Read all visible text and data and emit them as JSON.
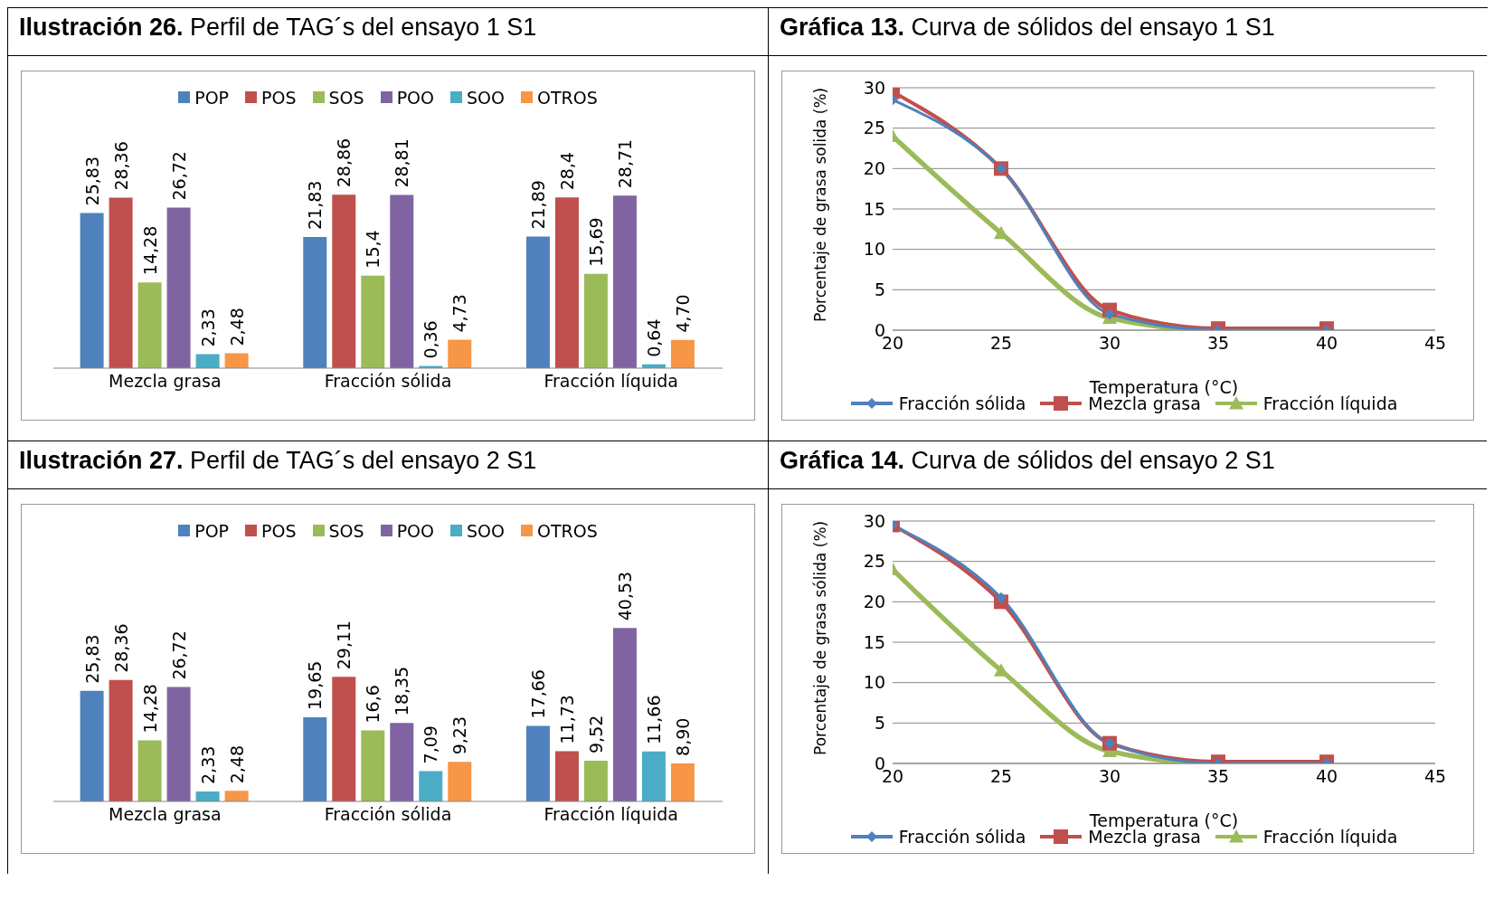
{
  "chart_data": [
    {
      "type": "bar",
      "title": "Ilustración 26. Perfil de TAG´s del ensayo 1 S1",
      "categories": [
        "Mezcla grasa",
        "Fracción sólida",
        "Fracción líquida"
      ],
      "legend": "top",
      "series": [
        {
          "name": "POP",
          "color": "#4f81bd",
          "values": [
            25.83,
            21.83,
            21.89
          ],
          "value_labels": [
            "25,83",
            "21,83",
            "21,89"
          ]
        },
        {
          "name": "POS",
          "color": "#c0504d",
          "values": [
            28.36,
            28.86,
            28.4
          ],
          "value_labels": [
            "28,36",
            "28,86",
            "28,4"
          ]
        },
        {
          "name": "SOS",
          "color": "#9bbb59",
          "values": [
            14.28,
            15.4,
            15.69
          ],
          "value_labels": [
            "14,28",
            "15,4",
            "15,69"
          ]
        },
        {
          "name": "POO",
          "color": "#8064a2",
          "values": [
            26.72,
            28.81,
            28.71
          ],
          "value_labels": [
            "26,72",
            "28,81",
            "28,71"
          ]
        },
        {
          "name": "SOO",
          "color": "#4bacc6",
          "values": [
            2.33,
            0.36,
            0.64
          ],
          "value_labels": [
            "2,33",
            "0,36",
            "0,64"
          ]
        },
        {
          "name": "OTROS",
          "color": "#f79646",
          "values": [
            2.48,
            4.73,
            4.7
          ],
          "value_labels": [
            "2,48",
            "4,73",
            "4,70"
          ]
        }
      ]
    },
    {
      "type": "line",
      "title": "Gráfica 13. Curva de sólidos del ensayo 1 S1",
      "xlabel": "Temperatura (°C)",
      "ylabel": "Porcentaje de grasa solida (%)",
      "x": [
        20,
        25,
        30,
        35,
        40
      ],
      "xlim": [
        20,
        45
      ],
      "xticks": [
        20,
        25,
        30,
        35,
        40,
        45
      ],
      "ylim": [
        0,
        30
      ],
      "yticks": [
        0,
        5,
        10,
        15,
        20,
        25,
        30
      ],
      "grid": "y",
      "legend": "bottom",
      "series": [
        {
          "name": "Fracción sólida",
          "color": "#4f81bd",
          "marker": "diamond",
          "values": [
            28.5,
            20,
            2,
            0,
            0
          ]
        },
        {
          "name": "Mezcla grasa",
          "color": "#c0504d",
          "marker": "square",
          "values": [
            29.5,
            20,
            2.5,
            0.2,
            0.2
          ]
        },
        {
          "name": "Fracción líquida",
          "color": "#9bbb59",
          "marker": "triangle",
          "values": [
            24,
            12,
            1.5,
            0,
            0
          ]
        }
      ]
    },
    {
      "type": "bar",
      "title": "Ilustración 27. Perfil de TAG´s del ensayo 2 S1",
      "categories": [
        "Mezcla grasa",
        "Fracción sólida",
        "Fracción líquida"
      ],
      "legend": "top",
      "series": [
        {
          "name": "POP",
          "color": "#4f81bd",
          "values": [
            25.83,
            19.65,
            17.66
          ],
          "value_labels": [
            "25,83",
            "19,65",
            "17,66"
          ]
        },
        {
          "name": "POS",
          "color": "#c0504d",
          "values": [
            28.36,
            29.11,
            11.73
          ],
          "value_labels": [
            "28,36",
            "29,11",
            "11,73"
          ]
        },
        {
          "name": "SOS",
          "color": "#9bbb59",
          "values": [
            14.28,
            16.6,
            9.52
          ],
          "value_labels": [
            "14,28",
            "16,6",
            "9,52"
          ]
        },
        {
          "name": "POO",
          "color": "#8064a2",
          "values": [
            26.72,
            18.35,
            40.53
          ],
          "value_labels": [
            "26,72",
            "18,35",
            "40,53"
          ]
        },
        {
          "name": "SOO",
          "color": "#4bacc6",
          "values": [
            2.33,
            7.09,
            11.66
          ],
          "value_labels": [
            "2,33",
            "7,09",
            "11,66"
          ]
        },
        {
          "name": "OTROS",
          "color": "#f79646",
          "values": [
            2.48,
            9.23,
            8.9
          ],
          "value_labels": [
            "2,48",
            "9,23",
            "8,90"
          ]
        }
      ]
    },
    {
      "type": "line",
      "title": "Gráfica 14. Curva de sólidos del ensayo 2 S1",
      "xlabel": "Temperatura (°C)",
      "ylabel": "Porcentaje de grasa sólida (%)",
      "x": [
        20,
        25,
        30,
        35,
        40
      ],
      "xlim": [
        20,
        45
      ],
      "xticks": [
        20,
        25,
        30,
        35,
        40,
        45
      ],
      "ylim": [
        0,
        30
      ],
      "yticks": [
        0,
        5,
        10,
        15,
        20,
        25,
        30
      ],
      "grid": "y",
      "legend": "bottom",
      "series": [
        {
          "name": "Fracción sólida",
          "color": "#4f81bd",
          "marker": "diamond",
          "values": [
            29.5,
            20.5,
            2.5,
            0,
            0
          ]
        },
        {
          "name": "Mezcla grasa",
          "color": "#c0504d",
          "marker": "square",
          "values": [
            29.5,
            20,
            2.5,
            0.2,
            0.2
          ]
        },
        {
          "name": "Fracción líquida",
          "color": "#9bbb59",
          "marker": "triangle",
          "values": [
            24,
            11.5,
            1.5,
            0,
            0
          ]
        }
      ]
    }
  ]
}
